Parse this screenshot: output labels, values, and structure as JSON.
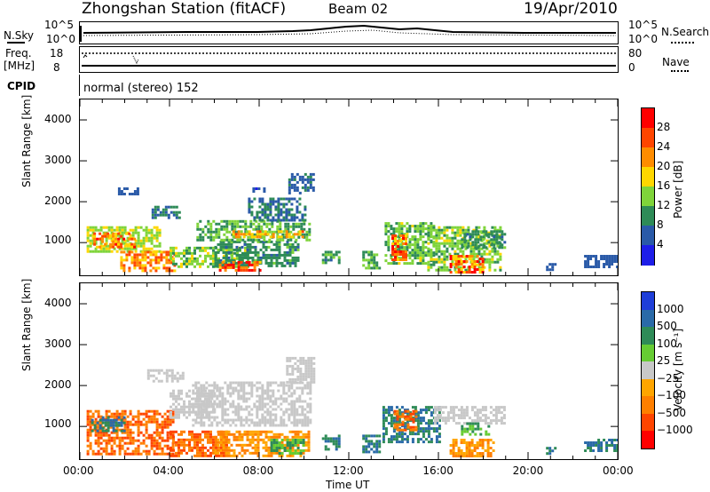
{
  "header": {
    "station": "Zhongshan Station (fitACF)",
    "beam": "Beam 02",
    "date": "19/Apr/2010"
  },
  "noise_panel": {
    "left_label": "N.Sky",
    "right_label": "N.Search",
    "left_ticks": [
      "10^5",
      "10^0"
    ],
    "right_ticks": [
      "10^5",
      "10^0"
    ]
  },
  "freq_panel": {
    "left_label_1": "Freq.",
    "left_label_2": "[MHz]",
    "right_label": "Nave",
    "left_ticks": [
      "18",
      "8"
    ],
    "right_ticks": [
      "80",
      "0"
    ],
    "cpid_label": "CPID",
    "cpid_text": "normal (stereo) 152"
  },
  "chart_data": [
    {
      "type": "heatmap",
      "name": "Power",
      "ylabel": "Slant Range [km]",
      "yticks": [
        "4000",
        "3000",
        "2000",
        "1000"
      ],
      "ylim": [
        200,
        4500
      ],
      "xlim": [
        0,
        24
      ],
      "xticks": [
        "00:00",
        "04:00",
        "08:00",
        "12:00",
        "16:00",
        "20:00",
        "00:00"
      ],
      "xlabel": "Time UT",
      "colorbar_label": "Power [dB]",
      "colorbar_ticks": [
        "28",
        "24",
        "20",
        "16",
        "12",
        "8",
        "4"
      ],
      "colorbar_colors": [
        "#ff0000",
        "#ff4500",
        "#ff8c00",
        "#ffd700",
        "#7fd43a",
        "#2e8b57",
        "#2a5aa8",
        "#1e1ee8"
      ],
      "regions": [
        {
          "t": [
            0.3,
            3.6
          ],
          "r": [
            800,
            1400
          ],
          "value": 16
        },
        {
          "t": [
            0.6,
            2.4
          ],
          "r": [
            900,
            1250
          ],
          "value": 24
        },
        {
          "t": [
            1.8,
            4.2
          ],
          "r": [
            300,
            800
          ],
          "value": 22
        },
        {
          "t": [
            4.0,
            7.5
          ],
          "r": [
            400,
            900
          ],
          "value": 14
        },
        {
          "t": [
            6.0,
            9.8
          ],
          "r": [
            400,
            1050
          ],
          "value": 10
        },
        {
          "t": [
            6.2,
            8.0
          ],
          "r": [
            300,
            550
          ],
          "value": 26
        },
        {
          "t": [
            5.2,
            10.2
          ],
          "r": [
            1050,
            1550
          ],
          "value": 12
        },
        {
          "t": [
            6.8,
            10.0
          ],
          "r": [
            1150,
            1300
          ],
          "value": 20
        },
        {
          "t": [
            7.5,
            10.0
          ],
          "r": [
            1550,
            2100
          ],
          "value": 8
        },
        {
          "t": [
            9.3,
            10.4
          ],
          "r": [
            2200,
            2700
          ],
          "value": 7
        },
        {
          "t": [
            3.2,
            4.4
          ],
          "r": [
            1600,
            1900
          ],
          "value": 8
        },
        {
          "t": [
            1.7,
            2.6
          ],
          "r": [
            2200,
            2350
          ],
          "value": 6
        },
        {
          "t": [
            7.7,
            8.2
          ],
          "r": [
            2250,
            2350
          ],
          "value": 5
        },
        {
          "t": [
            10.8,
            11.6
          ],
          "r": [
            500,
            800
          ],
          "value": 10
        },
        {
          "t": [
            12.6,
            13.4
          ],
          "r": [
            350,
            800
          ],
          "value": 12
        },
        {
          "t": [
            13.6,
            15.8
          ],
          "r": [
            500,
            1500
          ],
          "value": 13
        },
        {
          "t": [
            13.9,
            14.6
          ],
          "r": [
            600,
            1200
          ],
          "value": 24
        },
        {
          "t": [
            15.5,
            18.8
          ],
          "r": [
            300,
            1400
          ],
          "value": 14
        },
        {
          "t": [
            16.5,
            18.0
          ],
          "r": [
            300,
            700
          ],
          "value": 24
        },
        {
          "t": [
            17.0,
            19.0
          ],
          "r": [
            900,
            1300
          ],
          "value": 10
        },
        {
          "t": [
            22.5,
            24.0
          ],
          "r": [
            400,
            700
          ],
          "value": 6
        },
        {
          "t": [
            20.8,
            21.2
          ],
          "r": [
            350,
            500
          ],
          "value": 6
        }
      ]
    },
    {
      "type": "heatmap",
      "name": "Velocity",
      "ylabel": "Slant Range [km]",
      "yticks": [
        "4000",
        "3000",
        "2000",
        "1000"
      ],
      "ylim": [
        200,
        4500
      ],
      "xlim": [
        0,
        24
      ],
      "xticks": [
        "00:00",
        "04:00",
        "08:00",
        "12:00",
        "16:00",
        "20:00",
        "00:00"
      ],
      "xlabel": "Time UT",
      "colorbar_label": "Velocity [m s⁻¹]",
      "colorbar_ticks": [
        "1000",
        "500",
        "100",
        "25",
        "−25",
        "−100",
        "−500",
        "−1000"
      ],
      "colorbar_colors": [
        "#1e3ed8",
        "#2a6aa8",
        "#2e8b57",
        "#66cc33",
        "#c8c8c8",
        "#ffa500",
        "#ff7f00",
        "#ff4500",
        "#ff0000"
      ],
      "regions": [
        {
          "t": [
            0.3,
            4.2
          ],
          "r": [
            300,
            1400
          ],
          "value": -500
        },
        {
          "t": [
            0.5,
            2.0
          ],
          "r": [
            900,
            1250
          ],
          "value": 500
        },
        {
          "t": [
            4.0,
            6.5
          ],
          "r": [
            300,
            900
          ],
          "value": -500
        },
        {
          "t": [
            6.0,
            10.2
          ],
          "r": [
            300,
            900
          ],
          "value": -100
        },
        {
          "t": [
            5.0,
            10.3
          ],
          "r": [
            1000,
            2100
          ],
          "value": 0
        },
        {
          "t": [
            4.0,
            6.0
          ],
          "r": [
            1200,
            1900
          ],
          "value": 0
        },
        {
          "t": [
            9.2,
            10.4
          ],
          "r": [
            2100,
            2700
          ],
          "value": 0
        },
        {
          "t": [
            3.0,
            4.6
          ],
          "r": [
            2100,
            2400
          ],
          "value": 0
        },
        {
          "t": [
            8.5,
            10.0
          ],
          "r": [
            350,
            700
          ],
          "value": 100
        },
        {
          "t": [
            10.8,
            11.6
          ],
          "r": [
            450,
            800
          ],
          "value": 500
        },
        {
          "t": [
            12.6,
            13.4
          ],
          "r": [
            350,
            800
          ],
          "value": 500
        },
        {
          "t": [
            13.5,
            16.0
          ],
          "r": [
            600,
            1500
          ],
          "value": 500
        },
        {
          "t": [
            14.0,
            15.0
          ],
          "r": [
            900,
            1400
          ],
          "value": -500
        },
        {
          "t": [
            15.8,
            19.0
          ],
          "r": [
            1100,
            1500
          ],
          "value": 0
        },
        {
          "t": [
            16.5,
            18.5
          ],
          "r": [
            300,
            700
          ],
          "value": -100
        },
        {
          "t": [
            17.0,
            18.2
          ],
          "r": [
            800,
            1100
          ],
          "value": 100
        },
        {
          "t": [
            22.5,
            24.0
          ],
          "r": [
            400,
            700
          ],
          "value": 500
        },
        {
          "t": [
            20.8,
            21.2
          ],
          "r": [
            350,
            500
          ],
          "value": 500
        }
      ]
    }
  ]
}
